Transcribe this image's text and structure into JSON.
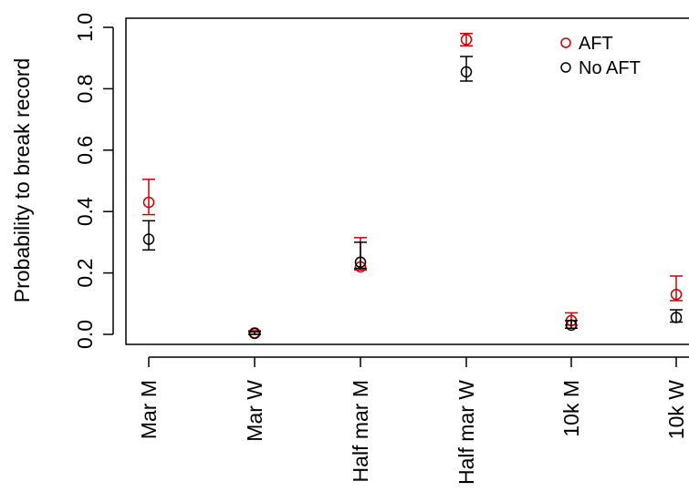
{
  "chart_data": {
    "type": "scatter",
    "subtype": "point-with-error-bars",
    "title": "",
    "xlabel": "",
    "ylabel": "Probability to break record",
    "ylim": [
      0,
      1
    ],
    "yticks": [
      "0.0",
      "0.2",
      "0.4",
      "0.6",
      "0.8",
      "1.0"
    ],
    "categories": [
      "Mar M",
      "Mar W",
      "Half mar M",
      "Half mar W",
      "10k M",
      "10k W"
    ],
    "series": [
      {
        "name": "AFT",
        "color": "#cc0000",
        "marker": "open-circle",
        "values": [
          0.43,
          0.005,
          0.22,
          0.96,
          0.045,
          0.13
        ],
        "lower": [
          0.39,
          0.0,
          0.21,
          0.94,
          0.03,
          0.11
        ],
        "upper": [
          0.505,
          0.012,
          0.315,
          0.98,
          0.07,
          0.19
        ]
      },
      {
        "name": "No AFT",
        "color": "#000000",
        "marker": "open-circle",
        "values": [
          0.31,
          0.003,
          0.235,
          0.855,
          0.03,
          0.055
        ],
        "lower": [
          0.275,
          0.0,
          0.215,
          0.825,
          0.02,
          0.04
        ],
        "upper": [
          0.37,
          0.008,
          0.3,
          0.905,
          0.045,
          0.08
        ]
      }
    ],
    "legend": {
      "position": "top-right",
      "entries": [
        "AFT",
        "No AFT"
      ]
    },
    "grid": false
  }
}
